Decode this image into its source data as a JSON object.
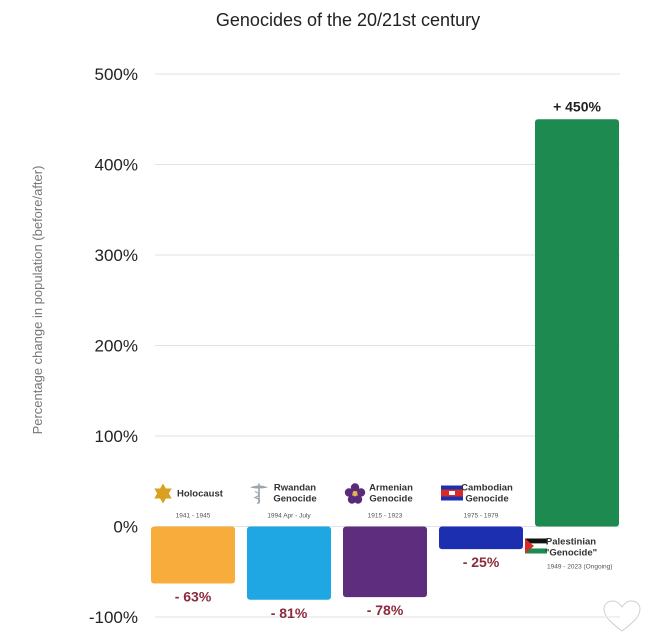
{
  "chart_data": {
    "type": "bar",
    "title": "Genocides of the 20/21st century",
    "ylabel": "Percentage change in population (before/after)",
    "ylim": [
      -100,
      500
    ],
    "yticks": [
      {
        "value": 500,
        "label": "500%"
      },
      {
        "value": 400,
        "label": "400%"
      },
      {
        "value": 300,
        "label": "300%"
      },
      {
        "value": 200,
        "label": "200%"
      },
      {
        "value": 100,
        "label": "100%"
      },
      {
        "value": 0,
        "label": "0%"
      },
      {
        "value": -100,
        "label": "-100%"
      }
    ],
    "grid": true,
    "bars": [
      {
        "name_lines": [
          "Holocaust"
        ],
        "years": "1941 - 1945",
        "value": -63,
        "label": "- 63%",
        "color": "#F7AC3C",
        "icon": "star-of-david-icon"
      },
      {
        "name_lines": [
          "Rwandan",
          "Genocide"
        ],
        "years": "1994 Apr - July",
        "value": -81,
        "label": "- 81%",
        "color": "#1EA7E2",
        "icon": "caduceus-icon"
      },
      {
        "name_lines": [
          "Armenian",
          "Genocide"
        ],
        "years": "1915 - 1923",
        "value": -78,
        "label": "- 78%",
        "color": "#5F2D7E",
        "icon": "forget-me-not-icon"
      },
      {
        "name_lines": [
          "Cambodian",
          "Genocide"
        ],
        "years": "1975 - 1979",
        "value": -25,
        "label": "- 25%",
        "color": "#1C2FB0",
        "icon": "cambodia-flag-icon"
      },
      {
        "name_lines": [
          "Palestinian",
          "\"Genocide\""
        ],
        "years": "1949 - 2023 (Ongoing)",
        "value": 450,
        "label": "+ 450%",
        "color": "#1D8B4F",
        "icon": "palestine-flag-icon"
      }
    ],
    "value_label_color": "#8B2B3C"
  },
  "overlay": {
    "icon": "heart-outline-icon"
  }
}
